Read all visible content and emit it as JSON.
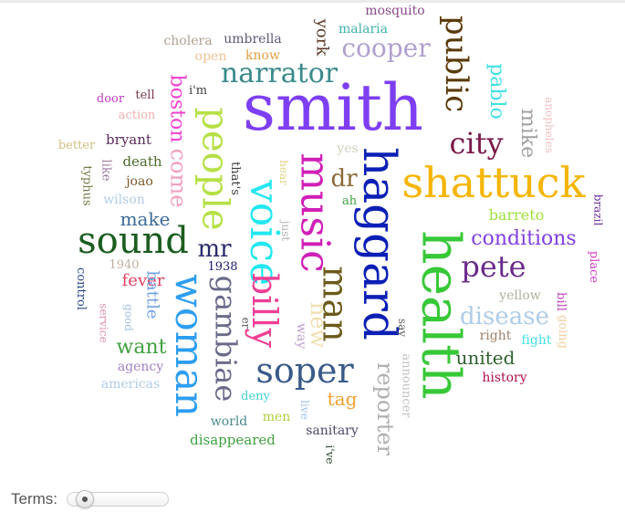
{
  "controls": {
    "terms_label": "Terms:",
    "terms_slider_value": 0.05
  },
  "word_cloud": {
    "words": [
      {
        "text": "smith",
        "color": "#7e3ff2",
        "weight": 70
      },
      {
        "text": "health",
        "color": "#37c837",
        "weight": 58
      },
      {
        "text": "haggard",
        "color": "#0b1fb5",
        "weight": 50
      },
      {
        "text": "shattuck",
        "color": "#f5b500",
        "weight": 46
      },
      {
        "text": "voice",
        "color": "#23e7f0",
        "weight": 44
      },
      {
        "text": "music",
        "color": "#d020b8",
        "weight": 44
      },
      {
        "text": "woman",
        "color": "#2d9ef0",
        "weight": 43
      },
      {
        "text": "sound",
        "color": "#1b5e20",
        "weight": 40
      },
      {
        "text": "people",
        "color": "#b6e046",
        "weight": 40
      },
      {
        "text": "billy",
        "color": "#f03f95",
        "weight": 38
      },
      {
        "text": "man",
        "color": "#6b5a1a",
        "weight": 38
      },
      {
        "text": "soper",
        "color": "#3a5a88",
        "weight": 38
      },
      {
        "text": "gambiae",
        "color": "#6a6a8a",
        "weight": 32
      },
      {
        "text": "public",
        "color": "#5a3a0a",
        "weight": 34
      },
      {
        "text": "city",
        "color": "#7a1a4a",
        "weight": 32
      },
      {
        "text": "pete",
        "color": "#6a2a8a",
        "weight": 32
      },
      {
        "text": "narrator",
        "color": "#3a8a8a",
        "weight": 30
      },
      {
        "text": "cooper",
        "color": "#b0a0d0",
        "weight": 28
      },
      {
        "text": "disease",
        "color": "#b0cce8",
        "weight": 26
      },
      {
        "text": "reporter",
        "color": "#b0b0b0",
        "weight": 24
      },
      {
        "text": "boston",
        "color": "#f040d0",
        "weight": 22
      },
      {
        "text": "come",
        "color": "#f0a0c0",
        "weight": 24
      },
      {
        "text": "new",
        "color": "#f0e0b0",
        "weight": 24
      },
      {
        "text": "dr",
        "color": "#8a6a3a",
        "weight": 26
      },
      {
        "text": "mr",
        "color": "#2a2a6a",
        "weight": 26
      },
      {
        "text": "pablo",
        "color": "#40e0e0",
        "weight": 22
      },
      {
        "text": "mike",
        "color": "#a0a0a0",
        "weight": 22
      },
      {
        "text": "conditions",
        "color": "#8040e0",
        "weight": 22
      },
      {
        "text": "want",
        "color": "#40a040",
        "weight": 22
      },
      {
        "text": "united",
        "color": "#306030",
        "weight": 20
      },
      {
        "text": "make",
        "color": "#3a6a9a",
        "weight": 20
      },
      {
        "text": "tag",
        "color": "#f0a030",
        "weight": 20
      },
      {
        "text": "fever",
        "color": "#e04060",
        "weight": 18
      },
      {
        "text": "battle",
        "color": "#70a0e0",
        "weight": 18
      },
      {
        "text": "barreto",
        "color": "#a0e040",
        "weight": 16
      },
      {
        "text": "mosquito",
        "color": "#8a4a8a",
        "weight": 14
      },
      {
        "text": "malaria",
        "color": "#40b0b0",
        "weight": 14
      },
      {
        "text": "york",
        "color": "#5a3a2a",
        "weight": 18
      },
      {
        "text": "umbrella",
        "color": "#5a5a7a",
        "weight": 14
      },
      {
        "text": "cholera",
        "color": "#b0a090",
        "weight": 14
      },
      {
        "text": "open",
        "color": "#f0c090",
        "weight": 14
      },
      {
        "text": "know",
        "color": "#e0a040",
        "weight": 14
      },
      {
        "text": "door",
        "color": "#c040c0",
        "weight": 13
      },
      {
        "text": "tell",
        "color": "#7a3a4a",
        "weight": 13
      },
      {
        "text": "i'm",
        "color": "#404040",
        "weight": 13
      },
      {
        "text": "action",
        "color": "#f0b0b0",
        "weight": 13
      },
      {
        "text": "better",
        "color": "#d0c080",
        "weight": 13
      },
      {
        "text": "bryant",
        "color": "#5a2a5a",
        "weight": 15
      },
      {
        "text": "death",
        "color": "#4a6a2a",
        "weight": 15
      },
      {
        "text": "typhus",
        "color": "#7a7a4a",
        "weight": 13
      },
      {
        "text": "like",
        "color": "#9a7a9a",
        "weight": 13
      },
      {
        "text": "joao",
        "color": "#7a5a2a",
        "weight": 14
      },
      {
        "text": "that's",
        "color": "#404040",
        "weight": 13
      },
      {
        "text": "hear",
        "color": "#e0d080",
        "weight": 12
      },
      {
        "text": "just",
        "color": "#b0b0b0",
        "weight": 12
      },
      {
        "text": "ah",
        "color": "#40a040",
        "weight": 13
      },
      {
        "text": "yes",
        "color": "#d0d0c0",
        "weight": 14
      },
      {
        "text": "wilson",
        "color": "#b0cce8",
        "weight": 14
      },
      {
        "text": "1940",
        "color": "#c0b0a0",
        "weight": 13
      },
      {
        "text": "control",
        "color": "#2a4a8a",
        "weight": 13
      },
      {
        "text": "service",
        "color": "#e090b0",
        "weight": 12
      },
      {
        "text": "good",
        "color": "#a0c0e0",
        "weight": 12
      },
      {
        "text": "1938",
        "color": "#1a1a6a",
        "weight": 13
      },
      {
        "text": "er",
        "color": "#5a5a5a",
        "weight": 12
      },
      {
        "text": "way",
        "color": "#c0a0d0",
        "weight": 14
      },
      {
        "text": "agency",
        "color": "#a080c0",
        "weight": 14
      },
      {
        "text": "americas",
        "color": "#b0cce8",
        "weight": 14
      },
      {
        "text": "deny",
        "color": "#40d0d0",
        "weight": 13
      },
      {
        "text": "world",
        "color": "#4a8a8a",
        "weight": 14
      },
      {
        "text": "men",
        "color": "#b0d040",
        "weight": 14
      },
      {
        "text": "disappeared",
        "color": "#40a040",
        "weight": 15
      },
      {
        "text": "live",
        "color": "#a0c0f0",
        "weight": 12
      },
      {
        "text": "sanitary",
        "color": "#4a4a6a",
        "weight": 14
      },
      {
        "text": "i've",
        "color": "#2a4a2a",
        "weight": 12
      },
      {
        "text": "announcer",
        "color": "#c0c0c0",
        "weight": 13
      },
      {
        "text": "say",
        "color": "#5a5a5a",
        "weight": 12
      },
      {
        "text": "yellow",
        "color": "#b0b0a0",
        "weight": 14
      },
      {
        "text": "right",
        "color": "#a0806a",
        "weight": 14
      },
      {
        "text": "fight",
        "color": "#40e0e0",
        "weight": 14
      },
      {
        "text": "bill",
        "color": "#c040c0",
        "weight": 13
      },
      {
        "text": "going",
        "color": "#f0d0a0",
        "weight": 13
      },
      {
        "text": "history",
        "color": "#b01050",
        "weight": 14
      },
      {
        "text": "anopheles",
        "color": "#f0c0c0",
        "weight": 12
      },
      {
        "text": "brazil",
        "color": "#6a2aa0",
        "weight": 12
      },
      {
        "text": "place",
        "color": "#d040c0",
        "weight": 13
      }
    ]
  }
}
